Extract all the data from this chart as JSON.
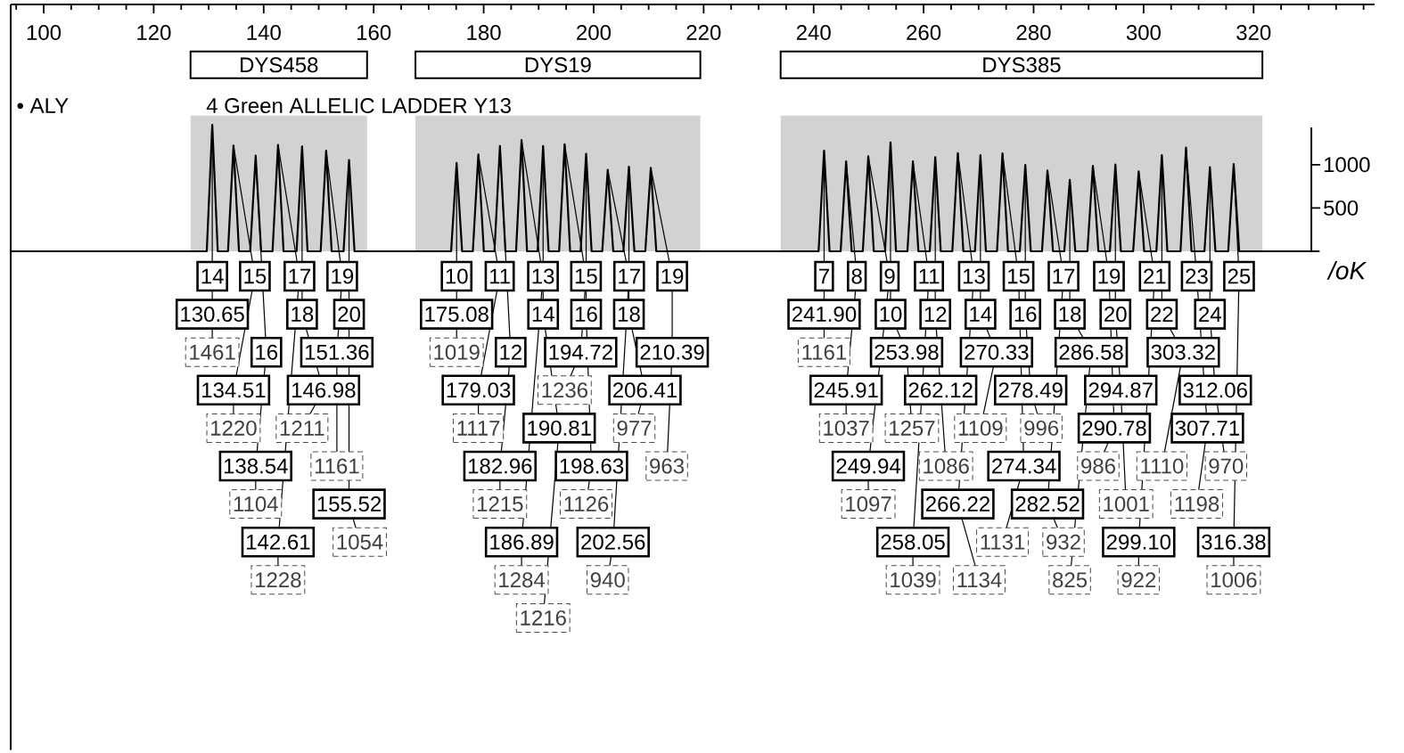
{
  "chart_data": {
    "type": "line",
    "title": "• ALY",
    "subtitle": "4 Green   ALLELIC LADDER Y13",
    "color": "#000000",
    "xlim": [
      94,
      342
    ],
    "ylim": [
      0,
      2850
    ],
    "xticks": [
      {
        "value": 95,
        "label": null
      },
      100,
      {
        "value": 105,
        "label": null
      },
      {
        "value": 110,
        "label": null
      },
      {
        "value": 115,
        "label": null
      },
      120,
      {
        "value": 125,
        "label": null
      },
      {
        "value": 130,
        "label": null
      },
      {
        "value": 135,
        "label": null
      },
      140,
      {
        "value": 145,
        "label": null
      },
      {
        "value": 150,
        "label": null
      },
      {
        "value": 155,
        "label": null
      },
      160,
      {
        "value": 165,
        "label": null
      },
      {
        "value": 170,
        "label": null
      },
      {
        "value": 175,
        "label": null
      },
      180,
      {
        "value": 185,
        "label": null
      },
      {
        "value": 190,
        "label": null
      },
      {
        "value": 195,
        "label": null
      },
      200,
      {
        "value": 205,
        "label": null
      },
      {
        "value": 210,
        "label": null
      },
      {
        "value": 215,
        "label": null
      },
      220,
      {
        "value": 225,
        "label": null
      },
      {
        "value": 230,
        "label": null
      },
      {
        "value": 235,
        "label": null
      },
      240,
      {
        "value": 245,
        "label": null
      },
      {
        "value": 250,
        "label": null
      },
      {
        "value": 255,
        "label": null
      },
      260,
      {
        "value": 265,
        "label": null
      },
      {
        "value": 270,
        "label": null
      },
      {
        "value": 275,
        "label": null
      },
      280,
      {
        "value": 285,
        "label": null
      },
      {
        "value": 290,
        "label": null
      },
      {
        "value": 295,
        "label": null
      },
      300,
      {
        "value": 305,
        "label": null
      },
      {
        "value": 310,
        "label": null
      },
      {
        "value": 315,
        "label": null
      },
      320,
      {
        "value": 325,
        "label": null
      },
      {
        "value": 330,
        "label": null
      },
      {
        "value": 335,
        "label": null
      },
      {
        "value": 340,
        "label": null
      }
    ],
    "yticks": [
      500,
      1000
    ],
    "bands": [
      {
        "axis": "x",
        "from": 126.7,
        "to": 158.8,
        "label": "DYS458",
        "color": "#d2d2d2"
      },
      {
        "axis": "x",
        "from": 167.6,
        "to": 219.4,
        "label": "DYS19",
        "color": "#d2d2d2"
      },
      {
        "axis": "x",
        "from": 234,
        "to": 321.6,
        "label": "DYS385",
        "color": "#d2d2d2"
      }
    ],
    "x": [
      94,
      110,
      124,
      129.65,
      130.65,
      131.65,
      133.51,
      134.51,
      135.51,
      137.54,
      138.54,
      139.54,
      141.61,
      142.61,
      143.61,
      145.98,
      146.98,
      147.98,
      150.36,
      151.36,
      152.36,
      154.52,
      155.52,
      156.52,
      160,
      166,
      174.08,
      175.08,
      176.08,
      178.03,
      179.03,
      180.03,
      181.96,
      182.96,
      183.96,
      185.89,
      186.89,
      187.89,
      189.81,
      190.81,
      191.81,
      193.72,
      194.72,
      195.72,
      197.63,
      198.63,
      199.63,
      201.56,
      202.56,
      203.56,
      205.41,
      206.41,
      207.41,
      209.39,
      210.39,
      211.39,
      222,
      232,
      240.9,
      241.9,
      242.9,
      244.91,
      245.91,
      246.91,
      248.94,
      249.94,
      250.94,
      252.98,
      253.98,
      254.98,
      257.05,
      258.05,
      259.05,
      261.12,
      262.12,
      263.12,
      265.22,
      266.22,
      267.22,
      269.33,
      270.33,
      271.33,
      273.34,
      274.34,
      275.34,
      277.49,
      278.49,
      279.49,
      281.52,
      282.52,
      283.52,
      285.58,
      286.58,
      287.58,
      289.78,
      290.78,
      291.78,
      293.87,
      294.87,
      295.87,
      298.1,
      299.1,
      300.1,
      302.32,
      303.32,
      304.32,
      306.71,
      307.71,
      308.71,
      311.06,
      312.06,
      313.06,
      315.38,
      316.38,
      317.38,
      325,
      332
    ],
    "values": [
      0,
      0,
      0,
      0,
      1461,
      0,
      0,
      1220,
      0,
      0,
      1104,
      0,
      0,
      1228,
      0,
      0,
      1211,
      0,
      0,
      1161,
      0,
      0,
      1054,
      0,
      0,
      0,
      0,
      1019,
      0,
      0,
      1117,
      0,
      0,
      1215,
      0,
      0,
      1284,
      0,
      0,
      1216,
      0,
      0,
      1236,
      0,
      0,
      1126,
      0,
      0,
      940,
      0,
      0,
      977,
      0,
      0,
      963,
      0,
      0,
      0,
      0,
      1161,
      0,
      0,
      1037,
      0,
      0,
      1097,
      0,
      0,
      1257,
      0,
      0,
      1039,
      0,
      0,
      1086,
      0,
      0,
      1134,
      0,
      0,
      1109,
      0,
      0,
      1131,
      0,
      0,
      996,
      0,
      0,
      932,
      0,
      0,
      825,
      0,
      0,
      986,
      0,
      0,
      1001,
      0,
      0,
      922,
      0,
      0,
      1110,
      0,
      0,
      1198,
      0,
      0,
      970,
      0,
      0,
      1006,
      0,
      0,
      0
    ],
    "annotations": [
      "/oK",
      {
        "text": "14",
        "x": 130.65,
        "y": 1461
      },
      "130.65",
      "1461",
      {
        "text": "15",
        "x": 134.51,
        "y": 1220
      },
      "134.51",
      "1220",
      {
        "text": "16",
        "x": 138.54,
        "y": 1104
      },
      "138.54",
      "1104",
      {
        "text": "17",
        "x": 142.61,
        "y": 1228
      },
      "142.61",
      "1228",
      {
        "text": "18",
        "x": 146.98,
        "y": 1211
      },
      "146.98",
      "1211",
      {
        "text": "19",
        "x": 151.36,
        "y": 1161
      },
      "151.36",
      "1161",
      {
        "text": "20",
        "x": 155.52,
        "y": 1054
      },
      "155.52",
      "1054",
      {
        "text": "10",
        "x": 175.08,
        "y": 1019
      },
      "175.08",
      "1019",
      {
        "text": "11",
        "x": 179.03,
        "y": 1117
      },
      "179.03",
      "1117",
      {
        "text": "12",
        "x": 182.96,
        "y": 1215
      },
      "182.96",
      "1215",
      {
        "text": "13",
        "x": 186.89,
        "y": 1284
      },
      "186.89",
      "1284",
      {
        "text": "14",
        "x": 190.81,
        "y": 1216
      },
      "190.81",
      "1216",
      {
        "text": "15",
        "x": 194.72,
        "y": 1236
      },
      "194.72",
      "1236",
      {
        "text": "16",
        "x": 198.63,
        "y": 1126
      },
      "198.63",
      "1126",
      {
        "text": "17",
        "x": 202.56,
        "y": 940
      },
      "202.56",
      "940",
      {
        "text": "18",
        "x": 206.41,
        "y": 977
      },
      "206.41",
      "977",
      {
        "text": "19",
        "x": 210.39,
        "y": 963
      },
      "210.39",
      "963",
      {
        "text": "7",
        "x": 241.9,
        "y": 1161
      },
      "241.90",
      "1161",
      {
        "text": "8",
        "x": 245.91,
        "y": 1037
      },
      "245.91",
      "1037",
      {
        "text": "9",
        "x": 249.94,
        "y": 1097
      },
      "249.94",
      "1097",
      {
        "text": "10",
        "x": 253.98,
        "y": 1257
      },
      "253.98",
      "1257",
      {
        "text": "11",
        "x": 258.05,
        "y": 1039
      },
      "258.05",
      "1039",
      {
        "text": "12",
        "x": 262.12,
        "y": 1086
      },
      "262.12",
      "1086",
      {
        "text": "13",
        "x": 266.22,
        "y": 1134
      },
      "266.22",
      "1134",
      {
        "text": "14",
        "x": 270.33,
        "y": 1109
      },
      "270.33",
      "1109",
      {
        "text": "15",
        "x": 274.34,
        "y": 1131
      },
      "274.34",
      "1131",
      {
        "text": "16",
        "x": 278.49,
        "y": 996
      },
      "278.49",
      "996",
      {
        "text": "17",
        "x": 282.52,
        "y": 932
      },
      "282.52",
      "932",
      {
        "text": "18",
        "x": 286.58,
        "y": 825
      },
      "286.58",
      "825",
      {
        "text": "19",
        "x": 290.78,
        "y": 986
      },
      "290.78",
      "986",
      {
        "text": "20",
        "x": 294.87,
        "y": 1001
      },
      "294.87",
      "1001",
      {
        "text": "21",
        "x": 299.1,
        "y": 922
      },
      "299.10",
      "922",
      {
        "text": "22",
        "x": 303.32,
        "y": 1110
      },
      "303.32",
      "1110",
      {
        "text": "23",
        "x": 307.71,
        "y": 1198
      },
      "307.71",
      "1198",
      {
        "text": "24",
        "x": 312.06,
        "y": 970
      },
      "312.06",
      "970",
      {
        "text": "25",
        "x": 316.38,
        "y": 1006
      },
      "316.38",
      "1006"
    ]
  }
}
